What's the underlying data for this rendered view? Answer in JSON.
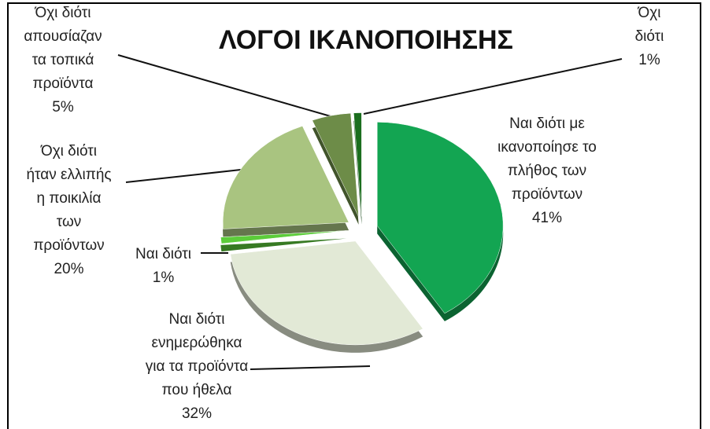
{
  "chart_data": {
    "type": "pie",
    "title": "ΛΟΓΟΙ ΙΚΑΝΟΠΟΙΗΣΗΣ",
    "categories": [
      "Ναι διότι με\nικανοποίησε το\nπλήθος των\nπροϊόντων",
      "Ναι διότι\nενημερώθηκα\nγια τα προϊόντα\nπου ήθελα",
      "Ναι διότι",
      "Όχι διότι\nήταν ελλιπής\nη ποικιλία\nτων\nπροϊόντων",
      "Όχι διότι\nαπουσίαζαν\nτα τοπικά\nπροϊόντα",
      "Όχι\nδιότι"
    ],
    "values": [
      41,
      32,
      1,
      20,
      5,
      1
    ],
    "value_labels": [
      "41%",
      "32%",
      "1%",
      "20%",
      "5%",
      "1%"
    ],
    "colors": [
      "#13a552",
      "#e2e9d6",
      "#5ccc3a",
      "#a9c480",
      "#6d8c48",
      "#1b6e1e"
    ]
  }
}
